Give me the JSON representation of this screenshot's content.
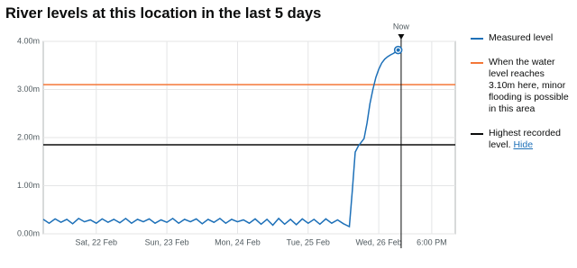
{
  "chart_data": {
    "type": "line",
    "title": "River levels at this location in the last 5 days",
    "x": [
      -18,
      -16,
      -14,
      -12,
      -10,
      -8,
      -6,
      -4,
      -2,
      0,
      2,
      4,
      6,
      8,
      10,
      12,
      14,
      16,
      18,
      20,
      22,
      24,
      26,
      28,
      30,
      32,
      34,
      36,
      38,
      40,
      42,
      44,
      46,
      48,
      50,
      52,
      54,
      56,
      58,
      60,
      62,
      64,
      66,
      68,
      70,
      72,
      74,
      76,
      78,
      80,
      82,
      84,
      86,
      87,
      88,
      89,
      90,
      91,
      92,
      93,
      94,
      95,
      96,
      97,
      98,
      99,
      100,
      101,
      102,
      102.6
    ],
    "series": [
      {
        "name": "Measured level",
        "color": "#1d70b8",
        "values": [
          0.3,
          0.22,
          0.31,
          0.24,
          0.3,
          0.21,
          0.32,
          0.25,
          0.29,
          0.22,
          0.31,
          0.24,
          0.3,
          0.23,
          0.32,
          0.22,
          0.3,
          0.25,
          0.31,
          0.22,
          0.29,
          0.24,
          0.32,
          0.22,
          0.3,
          0.25,
          0.31,
          0.21,
          0.3,
          0.24,
          0.32,
          0.22,
          0.3,
          0.25,
          0.29,
          0.22,
          0.31,
          0.2,
          0.3,
          0.18,
          0.32,
          0.2,
          0.3,
          0.19,
          0.31,
          0.22,
          0.3,
          0.2,
          0.31,
          0.22,
          0.29,
          0.21,
          0.15,
          0.9,
          1.7,
          1.82,
          1.9,
          1.98,
          2.3,
          2.7,
          3.0,
          3.25,
          3.42,
          3.55,
          3.63,
          3.68,
          3.72,
          3.75,
          3.79,
          3.82
        ]
      }
    ],
    "xlim": [
      -18,
      122
    ],
    "xticks": [
      {
        "value": 0,
        "label": "Sat, 22 Feb"
      },
      {
        "value": 24,
        "label": "Sun, 23 Feb"
      },
      {
        "value": 48,
        "label": "Mon, 24 Feb"
      },
      {
        "value": 72,
        "label": "Tue, 25 Feb"
      },
      {
        "value": 96,
        "label": "Wed, 26 Feb"
      },
      {
        "value": 114,
        "label": "6:00 PM"
      }
    ],
    "ylim": [
      0,
      4
    ],
    "yticks": [
      {
        "value": 0,
        "label": "0.00m"
      },
      {
        "value": 1,
        "label": "1.00m"
      },
      {
        "value": 2,
        "label": "2.00m"
      },
      {
        "value": 3,
        "label": "3.00m"
      },
      {
        "value": 4,
        "label": "4.00m"
      }
    ],
    "grid": true,
    "thresholds": [
      {
        "name": "When the water level reaches 3.10m here, minor flooding is possible in this area",
        "value": 3.1,
        "color": "#f47738"
      },
      {
        "name": "Highest recorded level.",
        "value": 1.85,
        "color": "#0b0c0c"
      }
    ],
    "legend_link": "Hide",
    "now": {
      "label": "Now",
      "x": 103.6
    }
  }
}
